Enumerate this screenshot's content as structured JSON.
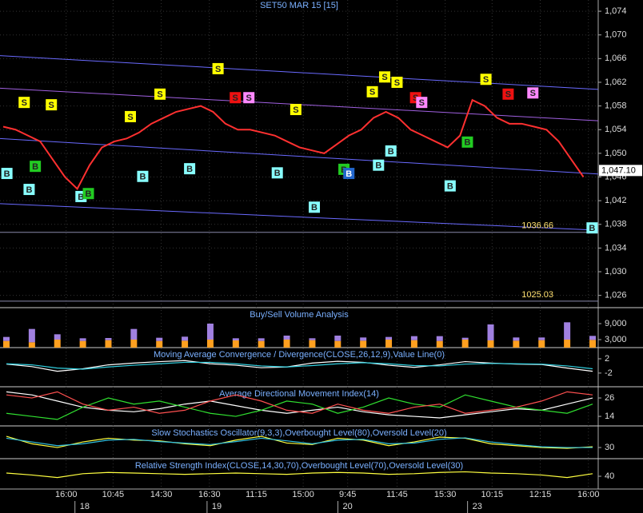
{
  "chart_data": [
    {
      "type": "line",
      "title": "SET50 MAR 15  [15]",
      "color": "#ff3030",
      "x": [
        0,
        1,
        2,
        3,
        4,
        5,
        6,
        7,
        8,
        9,
        10,
        11,
        12,
        13,
        14,
        15,
        16,
        17,
        18,
        19,
        20,
        21,
        22,
        23,
        24,
        25,
        26,
        27,
        28,
        29,
        30,
        31,
        32,
        33,
        34,
        35,
        36,
        37,
        38,
        39,
        40,
        41,
        42,
        43,
        44,
        45,
        46,
        47
      ],
      "values": [
        1054.5,
        1054,
        1053,
        1052,
        1049,
        1046,
        1044,
        1048,
        1051,
        1052,
        1052.5,
        1053.5,
        1055,
        1056,
        1057,
        1057.5,
        1058,
        1057,
        1055,
        1054,
        1054,
        1053.5,
        1053,
        1052,
        1051,
        1050.5,
        1050,
        1051.5,
        1053,
        1054,
        1056,
        1057,
        1056,
        1054,
        1053,
        1052,
        1051,
        1053,
        1059,
        1058,
        1056,
        1055,
        1055,
        1054.5,
        1054,
        1052,
        1049,
        1046
      ],
      "xlim": [
        0,
        48
      ],
      "ylim": [
        1024.2,
        1075.9
      ],
      "yticks": [
        {
          "value": 1026,
          "label": "1,026"
        },
        {
          "value": 1030,
          "label": "1,030"
        },
        {
          "value": 1034,
          "label": "1,034"
        },
        {
          "value": 1038,
          "label": "1,038"
        },
        {
          "value": 1042,
          "label": "1,042"
        },
        {
          "value": 1046,
          "label": "1,046"
        },
        {
          "value": 1050,
          "label": "1,050"
        },
        {
          "value": 1054,
          "label": "1,054"
        },
        {
          "value": 1058,
          "label": "1,058"
        },
        {
          "value": 1062,
          "label": "1,062"
        },
        {
          "value": 1066,
          "label": "1,066"
        },
        {
          "value": 1070,
          "label": "1,070"
        },
        {
          "value": 1074,
          "label": "1,074"
        }
      ],
      "xticks": [
        {
          "value": 5.1,
          "label": "16:00"
        },
        {
          "value": 8.9,
          "label": "10:45"
        },
        {
          "value": 12.8,
          "label": "14:30"
        },
        {
          "value": 16.7,
          "label": "16:30"
        },
        {
          "value": 20.5,
          "label": "11:15"
        },
        {
          "value": 24.3,
          "label": "15:00"
        },
        {
          "value": 27.9,
          "label": "9:45"
        },
        {
          "value": 31.9,
          "label": "11:45"
        },
        {
          "value": 35.8,
          "label": "15:30"
        },
        {
          "value": 39.6,
          "label": "10:15"
        },
        {
          "value": 43.5,
          "label": "12:15"
        },
        {
          "value": 47.4,
          "label": "16:00"
        }
      ],
      "dates": [
        {
          "value": 6.2,
          "label": "18"
        },
        {
          "value": 16.9,
          "label": "19"
        },
        {
          "value": 27.5,
          "label": "20"
        },
        {
          "value": 38,
          "label": "23"
        }
      ],
      "channels": [
        {
          "values": [
            1066.5,
            1060.8
          ],
          "color": "#6a6aff"
        },
        {
          "values": [
            1061,
            1055.5
          ],
          "color": "#a060e0"
        },
        {
          "values": [
            1052.5,
            1046.5
          ],
          "color": "#6a6aff"
        },
        {
          "values": [
            1041.5,
            1037
          ],
          "color": "#6a6aff"
        }
      ],
      "levels": [
        1036.66,
        1025.03
      ],
      "last_price": {
        "value": 1047.1,
        "label": "1,047.10"
      },
      "signals": [
        {
          "x": 1.7,
          "y": 1058.6,
          "label": "S",
          "color": "#ffff00"
        },
        {
          "x": 3.9,
          "y": 1058.2,
          "label": "S",
          "color": "#ffff00"
        },
        {
          "x": 10.3,
          "y": 1056.2,
          "label": "S",
          "color": "#ffff00"
        },
        {
          "x": 12.7,
          "y": 1060,
          "label": "S",
          "color": "#ffff00"
        },
        {
          "x": 17.4,
          "y": 1064.3,
          "label": "S",
          "color": "#ffff00"
        },
        {
          "x": 18.8,
          "y": 1059.4,
          "label": "S",
          "color": "#ee1111"
        },
        {
          "x": 19.9,
          "y": 1059.4,
          "label": "S",
          "color": "#ff88ff"
        },
        {
          "x": 23.7,
          "y": 1057.4,
          "label": "S",
          "color": "#ffff00"
        },
        {
          "x": 29.9,
          "y": 1060.4,
          "label": "S",
          "color": "#ffff00"
        },
        {
          "x": 30.9,
          "y": 1062.9,
          "label": "S",
          "color": "#ffff00"
        },
        {
          "x": 31.9,
          "y": 1062,
          "label": "S",
          "color": "#ffff00"
        },
        {
          "x": 33.4,
          "y": 1059.4,
          "label": "S",
          "color": "#ee1111"
        },
        {
          "x": 33.9,
          "y": 1058.6,
          "label": "S",
          "color": "#ff88ff"
        },
        {
          "x": 39.1,
          "y": 1062.5,
          "label": "S",
          "color": "#ffff00"
        },
        {
          "x": 40.9,
          "y": 1060,
          "label": "S",
          "color": "#ee1111"
        },
        {
          "x": 42.9,
          "y": 1060.2,
          "label": "S",
          "color": "#ff88ff"
        },
        {
          "x": 0.3,
          "y": 1046.6,
          "label": "B",
          "color": "#88ffff"
        },
        {
          "x": 2.1,
          "y": 1043.9,
          "label": "B",
          "color": "#88ffff"
        },
        {
          "x": 2.6,
          "y": 1047.8,
          "label": "B",
          "color": "#22cc22"
        },
        {
          "x": 6.3,
          "y": 1042.7,
          "label": "B",
          "color": "#88ffff"
        },
        {
          "x": 6.9,
          "y": 1043.2,
          "label": "B",
          "color": "#22cc22"
        },
        {
          "x": 11.3,
          "y": 1046.1,
          "label": "B",
          "color": "#88ffff"
        },
        {
          "x": 15.1,
          "y": 1047.4,
          "label": "B",
          "color": "#88ffff"
        },
        {
          "x": 22.2,
          "y": 1046.7,
          "label": "B",
          "color": "#88ffff"
        },
        {
          "x": 25.2,
          "y": 1040.9,
          "label": "B",
          "color": "#88ffff"
        },
        {
          "x": 27.6,
          "y": 1047.3,
          "label": "B",
          "color": "#22cc22"
        },
        {
          "x": 28,
          "y": 1046.6,
          "label": "B",
          "color": "#2266cc"
        },
        {
          "x": 30.4,
          "y": 1048,
          "label": "B",
          "color": "#88ffff"
        },
        {
          "x": 31.4,
          "y": 1050.4,
          "label": "B",
          "color": "#88ffff"
        },
        {
          "x": 36.2,
          "y": 1044.5,
          "label": "B",
          "color": "#88ffff"
        },
        {
          "x": 37.6,
          "y": 1051.9,
          "label": "B",
          "color": "#22cc22"
        },
        {
          "x": 47.7,
          "y": 1037.4,
          "label": "B",
          "color": "#88ffff"
        }
      ]
    },
    {
      "type": "bar",
      "title": "Buy/Sell Volume Analysis",
      "ylim": [
        0,
        14700
      ],
      "yticks": [
        {
          "value": 9000,
          "label": "9,000"
        },
        {
          "value": 3000,
          "label": "3,000"
        }
      ],
      "series": [
        {
          "color": "#ffa020",
          "values": [
            2500,
            2000,
            3000,
            2500,
            2800,
            3000,
            2500,
            2600,
            3000,
            2700,
            2500,
            3000,
            2800,
            2500,
            2600,
            3000,
            2800,
            2500,
            3000,
            2700,
            2600,
            2800,
            3000,
            2900
          ]
        },
        {
          "color": "#a080e0",
          "values": [
            1500,
            5000,
            2000,
            1000,
            800,
            4000,
            1200,
            1500,
            6000,
            800,
            1000,
            1500,
            700,
            2000,
            1200,
            1000,
            1500,
            1800,
            700,
            6000,
            1200,
            1000,
            6500,
            1500
          ]
        }
      ]
    },
    {
      "type": "line",
      "title": "Moving Average Convergence / Divergence(CLOSE,26,12,9),Value Line(0)",
      "ylim": [
        -5.6,
        4.9
      ],
      "yticks": [
        2,
        -2
      ],
      "series": [
        {
          "color": "#ffffff",
          "values": [
            0.5,
            -0.2,
            -1.5,
            -0.8,
            0.3,
            0.8,
            1.2,
            1.5,
            0.6,
            0.2,
            -0.5,
            -0.3,
            0.8,
            1.3,
            1.0,
            0.2,
            -0.4,
            0.3,
            1.2,
            0.8,
            0.5,
            0.4,
            -0.6,
            -1.5
          ]
        },
        {
          "color": "#30d0e0",
          "values": [
            0.6,
            0.3,
            -0.6,
            -0.9,
            -0.3,
            0.2,
            0.6,
            1.0,
            1.0,
            0.6,
            0.0,
            -0.3,
            0.1,
            0.6,
            0.9,
            0.6,
            0.1,
            0.0,
            0.5,
            0.7,
            0.6,
            0.5,
            0.0,
            -0.8
          ]
        }
      ]
    },
    {
      "type": "line",
      "title": "Average Directional Movement Index(14)",
      "ylim": [
        8.3,
        32.8
      ],
      "yticks": [
        26,
        14
      ],
      "series": [
        {
          "color": "#ffffff",
          "values": [
            30,
            28,
            24,
            20,
            18,
            17,
            19,
            22,
            24,
            21,
            18,
            16,
            18,
            20,
            17,
            15,
            14,
            13,
            15,
            17,
            19,
            18,
            22,
            26
          ]
        },
        {
          "color": "#30e030",
          "values": [
            16,
            14,
            12,
            20,
            26,
            22,
            24,
            20,
            16,
            14,
            18,
            24,
            22,
            16,
            20,
            26,
            22,
            20,
            28,
            24,
            20,
            18,
            16,
            22
          ]
        },
        {
          "color": "#ff5050",
          "values": [
            28,
            26,
            30,
            22,
            18,
            20,
            16,
            18,
            24,
            28,
            24,
            18,
            16,
            22,
            18,
            16,
            20,
            22,
            16,
            18,
            20,
            24,
            30,
            28
          ]
        }
      ]
    },
    {
      "type": "line",
      "title": "Slow Stochastics Oscillator(9,3,3),Overbought Level(80),Oversold Level(20)",
      "ylim": [
        0,
        86
      ],
      "yticks": [
        30
      ],
      "series": [
        {
          "color": "#ffff40",
          "values": [
            60,
            40,
            30,
            45,
            55,
            50,
            48,
            40,
            35,
            50,
            60,
            42,
            38,
            55,
            50,
            35,
            45,
            58,
            55,
            40,
            35,
            30,
            28,
            32
          ]
        },
        {
          "color": "#30c0e0",
          "values": [
            55,
            45,
            35,
            40,
            50,
            52,
            46,
            42,
            38,
            46,
            55,
            48,
            40,
            50,
            52,
            40,
            42,
            52,
            56,
            45,
            38,
            32,
            30,
            30
          ]
        }
      ]
    },
    {
      "type": "line",
      "title": "Relative Strength Index(CLOSE,14,30,70),Overbought Level(70),Oversold Level(30)",
      "ylim": [
        20,
        66.3
      ],
      "yticks": [
        40
      ],
      "series": [
        {
          "color": "#ffff40",
          "values": [
            45,
            42,
            38,
            44,
            46,
            45,
            44,
            43,
            44,
            45,
            44,
            43,
            45,
            46,
            45,
            43,
            44,
            46,
            47,
            45,
            44,
            42,
            38,
            44
          ]
        }
      ]
    }
  ]
}
